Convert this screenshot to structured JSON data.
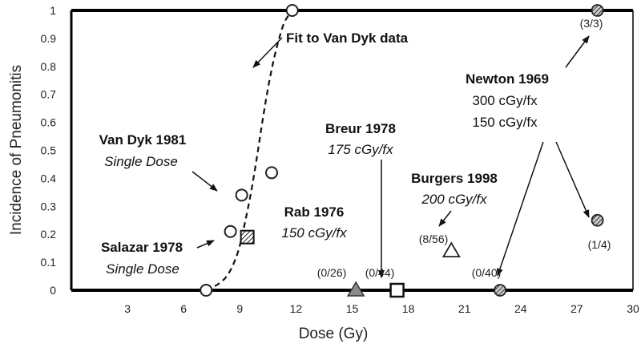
{
  "chart_data": {
    "type": "scatter",
    "xlabel": "Dose (Gy)",
    "ylabel": "Incidence of Pneumonitis",
    "xlim": [
      0,
      30
    ],
    "ylim": [
      0,
      1
    ],
    "x_ticks": [
      3,
      6,
      9,
      12,
      15,
      18,
      21,
      24,
      27,
      30
    ],
    "y_ticks": [
      0,
      0.1,
      0.2,
      0.3,
      0.4,
      0.5,
      0.6,
      0.7,
      0.8,
      0.9,
      1
    ],
    "x_tick_labels": [
      "3",
      "6",
      "9",
      "12",
      "15",
      "18",
      "21",
      "24",
      "27",
      "30"
    ],
    "y_tick_labels": [
      "0",
      "0.1",
      "0.2",
      "0.3",
      "0.4",
      "0.5",
      "0.6",
      "0.7",
      "0.8",
      "0.9",
      "1"
    ],
    "grid": false,
    "fit_curve": {
      "label": "Fit to Van Dyk data",
      "style": "dashed",
      "points": [
        [
          7.2,
          0
        ],
        [
          7.8,
          0.02
        ],
        [
          8.3,
          0.05
        ],
        [
          8.7,
          0.1
        ],
        [
          9.0,
          0.16
        ],
        [
          9.3,
          0.25
        ],
        [
          9.6,
          0.35
        ],
        [
          9.9,
          0.47
        ],
        [
          10.2,
          0.6
        ],
        [
          10.5,
          0.72
        ],
        [
          10.8,
          0.82
        ],
        [
          11.1,
          0.9
        ],
        [
          11.4,
          0.96
        ],
        [
          11.8,
          1.0
        ]
      ]
    },
    "series": [
      {
        "name": "Van Dyk 1981",
        "note": "Single Dose",
        "marker": "circle-open",
        "points": [
          [
            7.2,
            0
          ],
          [
            8.5,
            0.21
          ],
          [
            9.1,
            0.34
          ],
          [
            10.7,
            0.42
          ],
          [
            11.8,
            1.0
          ]
        ]
      },
      {
        "name": "Salazar 1978",
        "note": "Single Dose",
        "marker": "square-hatched",
        "points": [
          [
            9.4,
            0.19
          ]
        ]
      },
      {
        "name": "Rab 1976",
        "note": "150 cGy/fx",
        "marker": "triangle-gray",
        "points": [
          [
            15.2,
            0
          ]
        ],
        "counts": [
          "(0/26)"
        ]
      },
      {
        "name": "Breur 1978",
        "note": "175 cGy/fx",
        "marker": "square-open",
        "points": [
          [
            17.4,
            0
          ]
        ],
        "counts": [
          "(0/44)"
        ]
      },
      {
        "name": "Burgers 1998",
        "note": "200 cGy/fx",
        "marker": "triangle-open",
        "points": [
          [
            20.3,
            0.14
          ]
        ],
        "counts": [
          "(8/56)"
        ]
      },
      {
        "name": "Newton 1969",
        "note": "300 cGy/fx",
        "note2": "150 cGy/fx",
        "marker": "circle-hatched",
        "points": [
          [
            22.9,
            0
          ],
          [
            28.1,
            0.25
          ],
          [
            28.1,
            1.0
          ]
        ],
        "counts": [
          "(0/40)",
          "(1/4)",
          "(3/3)"
        ]
      }
    ]
  }
}
